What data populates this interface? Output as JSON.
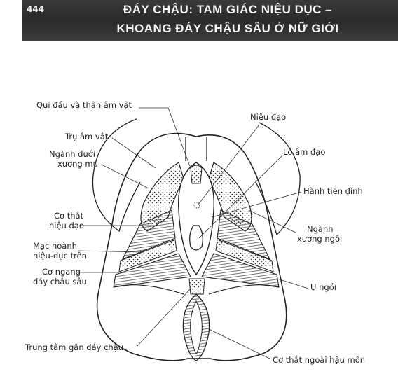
{
  "header": {
    "page_number": "444",
    "title_line1": "ĐÁY CHẬU: TAM GIÁC NIỆU DỤC –",
    "title_line2": "KHOANG ĐÁY CHẬU SÂU Ở NỮ GIỚI"
  },
  "labels": {
    "qui_dau": "Qui đầu và thân âm vật",
    "tru_am_vat": "Trụ âm vật",
    "nganh_duoi_1": "Ngành dưới",
    "nganh_duoi_2": "xương mu",
    "co_that_nieu_dao_1": "Cơ thắt",
    "co_that_nieu_dao_2": "niệu đạo",
    "mac_hoanh_1": "Mạc hoành",
    "mac_hoanh_2": "niệu-dục trên",
    "co_ngang_1": "Cơ ngang",
    "co_ngang_2": "đáy chậu sâu",
    "trung_tam_gan": "Trung tâm gân đáy chậu",
    "nieu_dao": "Niệu đạo",
    "lo_am_dao": "Lỗ âm đạo",
    "hanh_tien_dinh": "Hành tiền đình",
    "nganh_xuong_ngoi_1": "Ngành",
    "nganh_xuong_ngoi_2": "xương ngồi",
    "u_ngoi": "Ụ ngồi",
    "co_that_ngoai": "Cơ thắt ngoài hậu môn"
  }
}
